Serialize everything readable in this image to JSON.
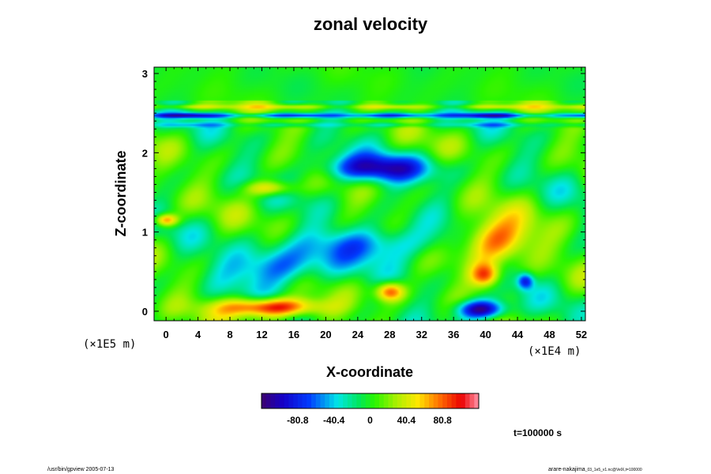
{
  "chart_data": {
    "type": "heatmap",
    "title": "zonal velocity",
    "xlabel": "X-coordinate",
    "ylabel": "Z-coordinate",
    "x_unit": "(×1E4 m)",
    "y_unit": "(×1E5 m)",
    "xlim": [
      -1.5,
      52.5
    ],
    "ylim": [
      -0.12,
      3.08
    ],
    "x_ticks": [
      "0",
      "4",
      "8",
      "12",
      "16",
      "20",
      "24",
      "28",
      "32",
      "36",
      "40",
      "44",
      "48",
      "52"
    ],
    "y_ticks": [
      "0",
      "1",
      "2",
      "3"
    ],
    "x_tick_values": [
      0,
      4,
      8,
      12,
      16,
      20,
      24,
      28,
      32,
      36,
      40,
      44,
      48,
      52
    ],
    "y_tick_values": [
      0,
      1,
      2,
      3
    ],
    "colorbar": {
      "min": -121.2,
      "max": 121.2,
      "tick_labels": [
        "-80.8",
        "-40.4",
        "0",
        "40.4",
        "80.8"
      ],
      "tick_values": [
        -80.8,
        -40.4,
        0,
        40.4,
        80.8
      ]
    },
    "features": [
      {
        "x": 26,
        "z": 1.8,
        "value": -95,
        "rx": 7,
        "rz": 0.17
      },
      {
        "x": 14,
        "z": 0.55,
        "value": -70,
        "rx": 6,
        "rz": 0.25
      },
      {
        "x": 27,
        "z": 0.85,
        "value": -60,
        "rx": 9,
        "rz": 0.22
      },
      {
        "x": 41,
        "z": 0.9,
        "value": 95,
        "rx": 4.5,
        "rz": 0.28
      },
      {
        "x": 40,
        "z": 0.45,
        "value": 85,
        "rx": 1.8,
        "rz": 0.15
      },
      {
        "x": 13,
        "z": 0.05,
        "value": 120,
        "rx": 6,
        "rz": 0.12
      },
      {
        "x": 39.5,
        "z": 0.02,
        "value": -130,
        "rx": 3,
        "rz": 0.12
      },
      {
        "x": 28,
        "z": 0.25,
        "value": 90,
        "rx": 1.8,
        "rz": 0.12
      },
      {
        "x": 13,
        "z": 1.55,
        "value": 70,
        "rx": 3,
        "rz": 0.1
      },
      {
        "x": 45,
        "z": 0.38,
        "value": -80,
        "rx": 1,
        "rz": 0.1
      },
      {
        "x": 0,
        "z": 1.15,
        "value": 85,
        "rx": 1.5,
        "rz": 0.08
      }
    ],
    "layers": [
      {
        "z": 2.47,
        "value": -90,
        "rz": 0.03
      },
      {
        "z": 2.58,
        "value": 40,
        "rz": 0.03
      },
      {
        "z": 2.35,
        "value": -30,
        "rz": 0.03
      }
    ],
    "time_label": "t=100000 s"
  },
  "footer": {
    "left": "/usr/bin/gpview 2005-07-13",
    "right_main": "arare-nakajima",
    "right_small": "_03_1e5_v1.nc@VelX,t=100000"
  }
}
